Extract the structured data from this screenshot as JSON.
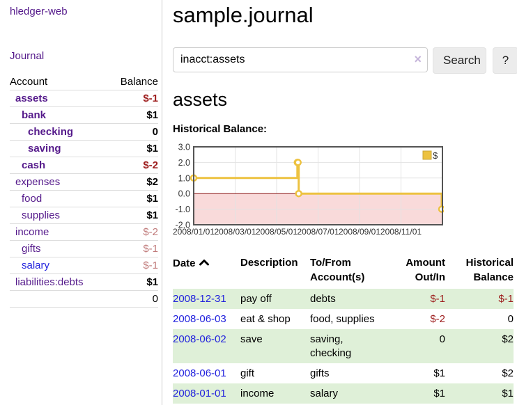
{
  "app_title": "hledger-web",
  "sidebar": {
    "journal_link": "Journal",
    "accounts": {
      "header_account": "Account",
      "header_balance": "Balance",
      "rows": [
        {
          "name": "assets",
          "balance": "$-1"
        },
        {
          "name": "bank",
          "balance": "$1"
        },
        {
          "name": "checking",
          "balance": "0"
        },
        {
          "name": "saving",
          "balance": "$1"
        },
        {
          "name": "cash",
          "balance": "$-2"
        },
        {
          "name": "expenses",
          "balance": "$2"
        },
        {
          "name": "food",
          "balance": "$1"
        },
        {
          "name": "supplies",
          "balance": "$1"
        },
        {
          "name": "income",
          "balance": "$-2"
        },
        {
          "name": "gifts",
          "balance": "$-1"
        },
        {
          "name": "salary",
          "balance": "$-1"
        },
        {
          "name": "liabilities:debts",
          "balance": "$1"
        }
      ],
      "total": "0"
    }
  },
  "main": {
    "title": "sample.journal",
    "search": {
      "value": "inacct:assets",
      "clear_icon": "×",
      "search_button": "Search",
      "help_button": "?"
    },
    "account_heading": "assets",
    "chart_title": "Historical Balance:"
  },
  "chart_data": {
    "type": "line",
    "style": "step",
    "title": "Historical Balance:",
    "series": [
      {
        "name": "$",
        "points": [
          {
            "date": "2008-01-01",
            "value": 1
          },
          {
            "date": "2008-06-01",
            "value": 2
          },
          {
            "date": "2008-06-02",
            "value": 2
          },
          {
            "date": "2008-06-03",
            "value": 0
          },
          {
            "date": "2008-12-31",
            "value": -1
          }
        ]
      }
    ],
    "x_ticks": [
      "2008/01/01",
      "2008/03/01",
      "2008/05/01",
      "2008/07/01",
      "2008/09/01",
      "2008/11/01"
    ],
    "y_ticks": [
      "3.0",
      "2.0",
      "1.0",
      "0.0",
      "-1.0",
      "-2.0"
    ],
    "x_range_months": [
      0,
      12
    ],
    "y_range": [
      -2,
      3
    ],
    "grid": true,
    "legend": {
      "label": "$",
      "position": "top-right"
    },
    "colors": {
      "line": "#edc240",
      "marker_fill": "#ffffff",
      "negative_region": "#f9dada",
      "zero_line": "#8b1515",
      "grid": "#e3e3e3",
      "border": "#545454",
      "legend_border": "#c9a637"
    }
  },
  "register": {
    "headers": {
      "date": "Date",
      "description": "Description",
      "tofrom": "To/From Account(s)",
      "amount": "Amount Out/In",
      "balance": "Historical Balance"
    },
    "rows": [
      {
        "date": "2008-12-31",
        "description": "pay off",
        "tofrom": "debts",
        "amount": "$-1",
        "balance": "$-1"
      },
      {
        "date": "2008-06-03",
        "description": "eat & shop",
        "tofrom": "food, supplies",
        "amount": "$-2",
        "balance": "0"
      },
      {
        "date": "2008-06-02",
        "description": "save",
        "tofrom": "saving, checking",
        "amount": "0",
        "balance": "$2"
      },
      {
        "date": "2008-06-01",
        "description": "gift",
        "tofrom": "gifts",
        "amount": "$1",
        "balance": "$2"
      },
      {
        "date": "2008-01-01",
        "description": "income",
        "tofrom": "salary",
        "amount": "$1",
        "balance": "$1"
      }
    ]
  }
}
